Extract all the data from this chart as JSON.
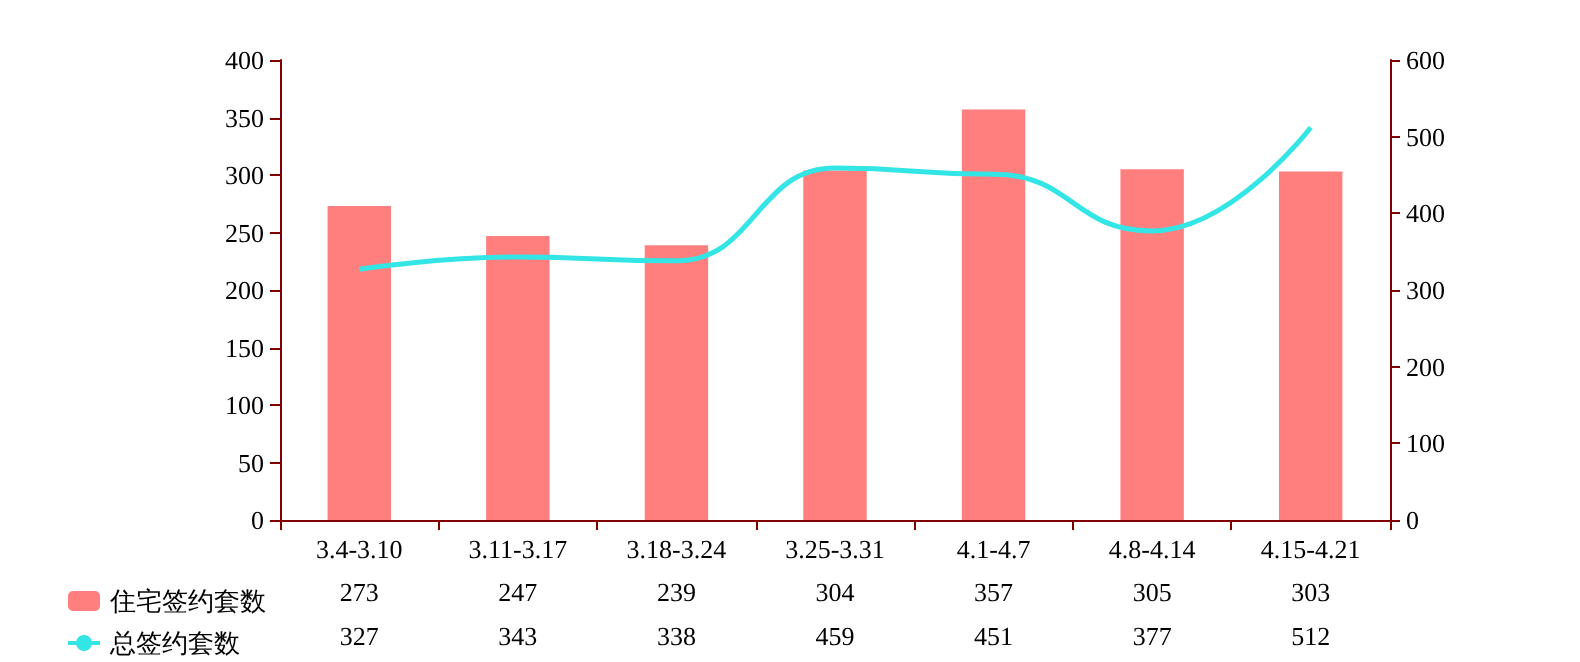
{
  "chart_data": {
    "type": "bar",
    "categories": [
      "3.4-3.10",
      "3.11-3.17",
      "3.18-3.24",
      "3.25-3.31",
      "4.1-4.7",
      "4.8-4.14",
      "4.15-4.21"
    ],
    "series": [
      {
        "name": "住宅签约套数",
        "color": "#ff7f7f",
        "values": [
          273,
          247,
          239,
          304,
          357,
          305,
          303
        ]
      },
      {
        "name": "总签约套数",
        "type": "line",
        "axis": "y2",
        "color": "#33e5e5",
        "values": [
          327,
          343,
          338,
          459,
          451,
          377,
          512
        ]
      }
    ],
    "ylim": [
      0,
      400
    ],
    "yticks": [
      0,
      50,
      100,
      150,
      200,
      250,
      300,
      350,
      400
    ],
    "y2lim": [
      0,
      600
    ],
    "y2ticks": [
      0,
      100,
      200,
      300,
      400,
      500,
      600
    ],
    "data_labels": true,
    "legend": "bottom left",
    "marker": "none",
    "grid": false
  }
}
